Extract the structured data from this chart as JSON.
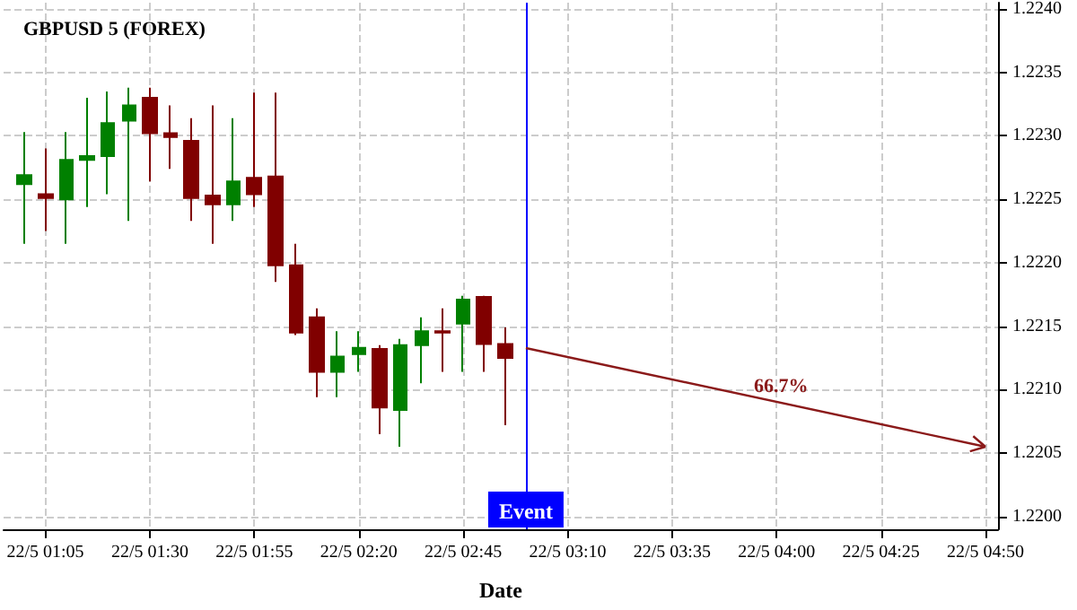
{
  "chart_data": {
    "type": "candlestick",
    "title": "GBPUSD 5 (FOREX)",
    "xlabel": "Date",
    "series": [
      {
        "type": "candlestick",
        "x": [
          "--05-22T01:00",
          "--05-22T01:05",
          "--05-22T01:10",
          "--05-22T01:15",
          "--05-22T01:20",
          "--05-22T01:25",
          "--05-22T01:30",
          "--05-22T01:35",
          "--05-22T01:40",
          "--05-22T01:45",
          "--05-22T01:50",
          "--05-22T01:55",
          "--05-22T02:00",
          "--05-22T02:05",
          "--05-22T02:10",
          "--05-22T02:15",
          "--05-22T02:20",
          "--05-22T02:25",
          "--05-22T02:30",
          "--05-22T02:35",
          "--05-22T02:40",
          "--05-22T02:45",
          "--05-22T02:50",
          "--05-22T02:55"
        ],
        "ohlc": [
          [
            1.22262,
            1.22303,
            1.22215,
            1.22269
          ],
          [
            1.22254,
            1.2229,
            1.22225,
            1.22251
          ],
          [
            1.2225,
            1.22303,
            1.22215,
            1.22281
          ],
          [
            1.22281,
            1.2233,
            1.22244,
            1.22284
          ],
          [
            1.22284,
            1.22335,
            1.22254,
            1.2231
          ],
          [
            1.22312,
            1.22338,
            1.22233,
            1.22324
          ],
          [
            1.2233,
            1.22338,
            1.22264,
            1.22302
          ],
          [
            1.22302,
            1.22324,
            1.22274,
            1.22299
          ],
          [
            1.22296,
            1.22314,
            1.22233,
            1.22251
          ],
          [
            1.22253,
            1.22324,
            1.22215,
            1.22246
          ],
          [
            1.22246,
            1.22314,
            1.22233,
            1.22264
          ],
          [
            1.22267,
            1.22334,
            1.22244,
            1.22254
          ],
          [
            1.22268,
            1.22334,
            1.22185,
            1.22198
          ],
          [
            1.22198,
            1.22215,
            1.22143,
            1.22145
          ],
          [
            1.22157,
            1.22164,
            1.22094,
            1.22114
          ],
          [
            1.22114,
            1.22146,
            1.22094,
            1.22126
          ],
          [
            1.22128,
            1.22146,
            1.22114,
            1.22133
          ],
          [
            1.22132,
            1.22135,
            1.22065,
            1.22086
          ],
          [
            1.22084,
            1.2214,
            1.22055,
            1.22135
          ],
          [
            1.22135,
            1.22157,
            1.22105,
            1.22146
          ],
          [
            1.22146,
            1.22164,
            1.22114,
            1.22145
          ],
          [
            1.22152,
            1.22174,
            1.22114,
            1.22171
          ],
          [
            1.22173,
            1.22174,
            1.22114,
            1.22136
          ],
          [
            1.22136,
            1.22149,
            1.22072,
            1.22125
          ]
        ],
        "colors": [
          "#008000",
          "#800000",
          "#008000",
          "#008000",
          "#008000",
          "#008000",
          "#800000",
          "#800000",
          "#800000",
          "#800000",
          "#008000",
          "#800000",
          "#800000",
          "#800000",
          "#800000",
          "#008000",
          "#008000",
          "#800000",
          "#008000",
          "#008000",
          "#800000",
          "#008000",
          "#800000",
          "#800000"
        ]
      }
    ],
    "annotations": [
      "66.7%"
    ],
    "ref_lines": [
      {
        "axis": "x",
        "value": "--05-22T03:00",
        "label": "Event",
        "color": "#0000ff"
      }
    ],
    "xlim": [
      "--05-22T00:55",
      "--05-22T04:53"
    ],
    "xticks": [
      {
        "value": "--05-22T01:05",
        "label": "22/5 01:05"
      },
      {
        "value": "--05-22T01:30",
        "label": "22/5 01:30"
      },
      {
        "value": "--05-22T01:55",
        "label": "22/5 01:55"
      },
      {
        "value": "--05-22T02:20",
        "label": "22/5 02:20"
      },
      {
        "value": "--05-22T02:45",
        "label": "22/5 02:45"
      },
      {
        "value": "--05-22T03:10",
        "label": "22/5 03:10"
      },
      {
        "value": "--05-22T03:35",
        "label": "22/5 03:35"
      },
      {
        "value": "--05-22T04:00",
        "label": "22/5 04:00"
      },
      {
        "value": "--05-22T04:25",
        "label": "22/5 04:25"
      },
      {
        "value": "--05-22T04:50",
        "label": "22/5 04:50"
      }
    ],
    "ylim": [
      1.2199,
      1.22405
    ],
    "yticks": [
      {
        "value": 1.22,
        "label": "1.2200"
      },
      1.2205,
      {
        "value": 1.221,
        "label": "1.2210"
      },
      1.2215,
      {
        "value": 1.222,
        "label": "1.2220"
      },
      1.2225,
      {
        "value": 1.223,
        "label": "1.2230"
      },
      1.2235,
      {
        "value": 1.224,
        "label": "1.2240"
      }
    ],
    "grid": true
  }
}
